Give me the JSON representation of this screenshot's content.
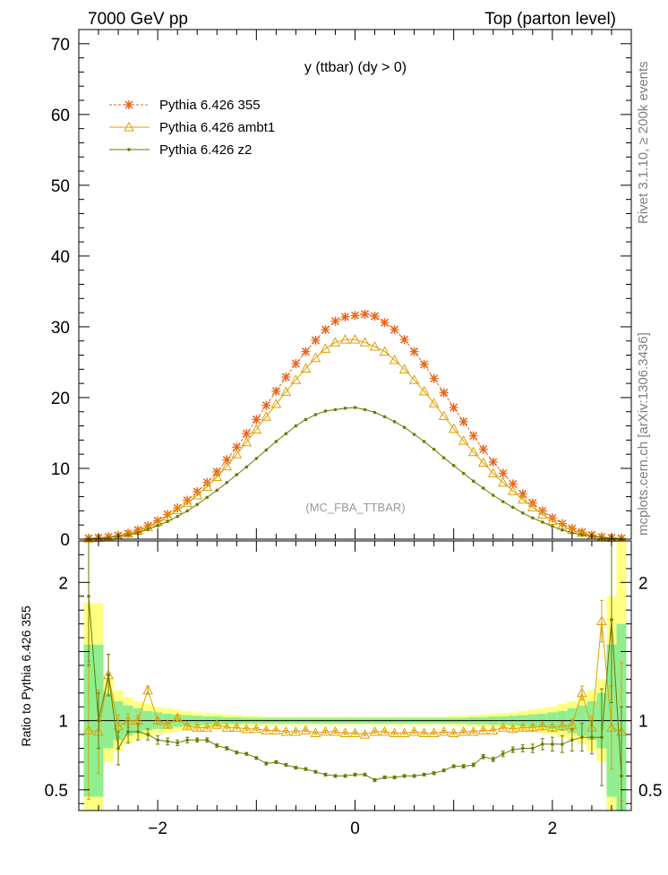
{
  "header": {
    "energy": "7000 GeV pp",
    "process": "Top (parton level)"
  },
  "side_labels": {
    "rivet": "Rivet 3.1.10, ≥ 200k events",
    "mcplots": "mcplots.cern.ch [arXiv:1306.3436]"
  },
  "chart_data": [
    {
      "type": "line",
      "title": "y (ttbar) (dy > 0)",
      "analysis": "(MC_FBA_TTBAR)",
      "xlabel": "",
      "ylabel": "",
      "xlim": [
        -2.8,
        2.8
      ],
      "ylim": [
        0,
        72
      ],
      "yticks": [
        0,
        10,
        20,
        30,
        40,
        50,
        60,
        70
      ],
      "x": [
        -2.7,
        -2.6,
        -2.5,
        -2.4,
        -2.3,
        -2.2,
        -2.1,
        -2.0,
        -1.9,
        -1.8,
        -1.7,
        -1.6,
        -1.5,
        -1.4,
        -1.3,
        -1.2,
        -1.1,
        -1.0,
        -0.9,
        -0.8,
        -0.7,
        -0.6,
        -0.5,
        -0.4,
        -0.3,
        -0.2,
        -0.1,
        0.0,
        0.1,
        0.2,
        0.3,
        0.4,
        0.5,
        0.6,
        0.7,
        0.8,
        0.9,
        1.0,
        1.1,
        1.2,
        1.3,
        1.4,
        1.5,
        1.6,
        1.7,
        1.8,
        1.9,
        2.0,
        2.1,
        2.2,
        2.3,
        2.4,
        2.5,
        2.6,
        2.7
      ],
      "series": [
        {
          "name": "Pythia 6.426 355",
          "color": "#e8641a",
          "marker": "star",
          "style": "dashed",
          "values": [
            0.1,
            0.2,
            0.3,
            0.5,
            0.8,
            1.3,
            1.9,
            2.6,
            3.5,
            4.4,
            5.5,
            6.7,
            8.0,
            9.5,
            11.2,
            13.0,
            14.9,
            16.9,
            18.9,
            20.9,
            22.9,
            24.8,
            26.5,
            28.1,
            29.6,
            30.8,
            31.4,
            31.6,
            31.8,
            31.5,
            30.6,
            29.6,
            28.2,
            26.5,
            24.7,
            22.7,
            20.7,
            18.6,
            16.6,
            14.6,
            12.7,
            10.9,
            9.3,
            7.8,
            6.4,
            5.1,
            4.0,
            3.0,
            2.2,
            1.5,
            1.0,
            0.6,
            0.3,
            0.2,
            0.1
          ]
        },
        {
          "name": "Pythia 6.426 ambt1",
          "color": "#e0a000",
          "marker": "triangle",
          "style": "solid",
          "values": [
            0.1,
            0.2,
            0.3,
            0.5,
            0.8,
            1.2,
            1.7,
            2.4,
            3.2,
            4.1,
            5.1,
            6.2,
            7.4,
            8.8,
            10.3,
            12.0,
            13.7,
            15.5,
            17.3,
            19.1,
            20.8,
            22.5,
            24.1,
            25.6,
            26.9,
            27.8,
            28.2,
            28.2,
            27.8,
            27.2,
            26.5,
            25.3,
            24.0,
            22.5,
            20.9,
            19.2,
            17.4,
            15.6,
            13.9,
            12.3,
            10.8,
            9.3,
            8.0,
            6.8,
            5.6,
            4.5,
            3.5,
            2.6,
            1.9,
            1.3,
            0.9,
            0.5,
            0.3,
            0.2,
            0.1
          ]
        },
        {
          "name": "Pythia 6.426 z2",
          "color": "#6b7a00",
          "marker": "dot",
          "style": "solid",
          "values": [
            0.1,
            0.1,
            0.2,
            0.4,
            0.6,
            0.9,
            1.4,
            1.9,
            2.5,
            3.2,
            4.0,
            4.9,
            5.9,
            6.9,
            8.0,
            9.1,
            10.2,
            11.4,
            12.6,
            13.8,
            14.9,
            16.0,
            16.9,
            17.6,
            18.1,
            18.3,
            18.5,
            18.6,
            18.3,
            17.9,
            17.3,
            16.6,
            15.8,
            14.8,
            13.8,
            12.7,
            11.5,
            10.4,
            9.3,
            8.2,
            7.2,
            6.2,
            5.3,
            4.5,
            3.7,
            3.0,
            2.4,
            1.8,
            1.3,
            0.9,
            0.6,
            0.4,
            0.2,
            0.1,
            0.05
          ]
        }
      ]
    },
    {
      "type": "line",
      "title": "",
      "ylabel": "Ratio to Pythia 6.426 355",
      "xlim": [
        -2.8,
        2.8
      ],
      "ylim": [
        0.35,
        2.3
      ],
      "yticks": [
        0.5,
        1,
        2
      ],
      "xticks": [
        -2,
        0,
        2
      ],
      "xtick_labels": [
        "−2",
        "0",
        "2"
      ],
      "x": [
        -2.7,
        -2.6,
        -2.5,
        -2.4,
        -2.3,
        -2.2,
        -2.1,
        -2.0,
        -1.9,
        -1.8,
        -1.7,
        -1.6,
        -1.5,
        -1.4,
        -1.3,
        -1.2,
        -1.1,
        -1.0,
        -0.9,
        -0.8,
        -0.7,
        -0.6,
        -0.5,
        -0.4,
        -0.3,
        -0.2,
        -0.1,
        0.0,
        0.1,
        0.2,
        0.3,
        0.4,
        0.5,
        0.6,
        0.7,
        0.8,
        0.9,
        1.0,
        1.1,
        1.2,
        1.3,
        1.4,
        1.5,
        1.6,
        1.7,
        1.8,
        1.9,
        2.0,
        2.1,
        2.2,
        2.3,
        2.4,
        2.5,
        2.6,
        2.7
      ],
      "band_inner_halfwidth": [
        0.55,
        0.55,
        0.2,
        0.14,
        0.11,
        0.09,
        0.07,
        0.06,
        0.05,
        0.045,
        0.04,
        0.035,
        0.03,
        0.03,
        0.025,
        0.025,
        0.02,
        0.02,
        0.02,
        0.02,
        0.02,
        0.02,
        0.02,
        0.02,
        0.02,
        0.02,
        0.02,
        0.02,
        0.02,
        0.02,
        0.02,
        0.02,
        0.02,
        0.02,
        0.02,
        0.02,
        0.02,
        0.02,
        0.02,
        0.025,
        0.025,
        0.03,
        0.03,
        0.035,
        0.04,
        0.045,
        0.05,
        0.06,
        0.07,
        0.09,
        0.11,
        0.14,
        0.2,
        0.55,
        0.7
      ],
      "band_outer_halfwidth": [
        0.85,
        0.85,
        0.3,
        0.22,
        0.17,
        0.14,
        0.12,
        0.1,
        0.09,
        0.08,
        0.07,
        0.06,
        0.055,
        0.05,
        0.045,
        0.04,
        0.035,
        0.035,
        0.03,
        0.03,
        0.03,
        0.03,
        0.03,
        0.03,
        0.03,
        0.03,
        0.03,
        0.03,
        0.03,
        0.03,
        0.03,
        0.03,
        0.03,
        0.03,
        0.03,
        0.03,
        0.03,
        0.035,
        0.035,
        0.04,
        0.045,
        0.05,
        0.055,
        0.06,
        0.07,
        0.08,
        0.09,
        0.1,
        0.12,
        0.14,
        0.17,
        0.22,
        0.3,
        0.9,
        1.3
      ],
      "series": [
        {
          "name": "Pythia 6.426 ambt1",
          "color": "#e0a000",
          "marker": "triangle",
          "values": [
            0.93,
            0.92,
            1.33,
            0.96,
            1.0,
            1.0,
            1.22,
            1.0,
            0.97,
            1.02,
            0.96,
            0.95,
            0.95,
            0.97,
            0.95,
            0.95,
            0.94,
            0.94,
            0.93,
            0.93,
            0.92,
            0.92,
            0.93,
            0.91,
            0.92,
            0.92,
            0.91,
            0.91,
            0.9,
            0.92,
            0.92,
            0.91,
            0.91,
            0.92,
            0.91,
            0.91,
            0.92,
            0.91,
            0.92,
            0.92,
            0.93,
            0.93,
            0.95,
            0.94,
            0.95,
            0.95,
            0.96,
            0.95,
            0.96,
            0.97,
            1.2,
            0.95,
            1.72,
            0.95,
            0.92
          ],
          "errors": [
            0.5,
            0.3,
            0.15,
            0.08,
            0.05,
            0.04,
            0.03,
            0.02,
            0.02,
            0.02,
            0.015,
            0.015,
            0.01,
            0.01,
            0.01,
            0.01,
            0.01,
            0.01,
            0.01,
            0.01,
            0.01,
            0.01,
            0.01,
            0.01,
            0.01,
            0.01,
            0.01,
            0.01,
            0.01,
            0.01,
            0.01,
            0.01,
            0.01,
            0.01,
            0.01,
            0.01,
            0.01,
            0.01,
            0.01,
            0.01,
            0.01,
            0.01,
            0.01,
            0.015,
            0.015,
            0.02,
            0.02,
            0.02,
            0.03,
            0.04,
            0.05,
            0.08,
            0.15,
            0.3,
            0.5
          ]
        },
        {
          "name": "Pythia 6.426 z2",
          "color": "#6b7a00",
          "marker": "dot",
          "values": [
            1.9,
            1.0,
            1.33,
            0.8,
            0.92,
            0.92,
            0.9,
            0.86,
            0.85,
            0.84,
            0.86,
            0.86,
            0.86,
            0.82,
            0.8,
            0.77,
            0.76,
            0.73,
            0.69,
            0.7,
            0.68,
            0.66,
            0.65,
            0.63,
            0.61,
            0.6,
            0.6,
            0.61,
            0.61,
            0.57,
            0.59,
            0.59,
            0.6,
            0.6,
            0.61,
            0.62,
            0.64,
            0.67,
            0.67,
            0.68,
            0.74,
            0.72,
            0.76,
            0.79,
            0.8,
            0.8,
            0.83,
            0.83,
            0.83,
            0.86,
            0.88,
            0.88,
            0.88,
            1.73,
            0.6
          ],
          "errors": [
            0.5,
            0.2,
            0.15,
            0.12,
            0.08,
            0.06,
            0.04,
            0.03,
            0.025,
            0.02,
            0.02,
            0.015,
            0.015,
            0.012,
            0.012,
            0.01,
            0.01,
            0.01,
            0.01,
            0.01,
            0.01,
            0.01,
            0.01,
            0.01,
            0.01,
            0.01,
            0.01,
            0.01,
            0.01,
            0.01,
            0.01,
            0.01,
            0.01,
            0.01,
            0.01,
            0.01,
            0.01,
            0.01,
            0.012,
            0.012,
            0.015,
            0.015,
            0.02,
            0.02,
            0.025,
            0.03,
            0.04,
            0.05,
            0.06,
            0.08,
            0.1,
            0.12,
            0.35,
            0.6,
            0.5
          ]
        }
      ]
    }
  ]
}
